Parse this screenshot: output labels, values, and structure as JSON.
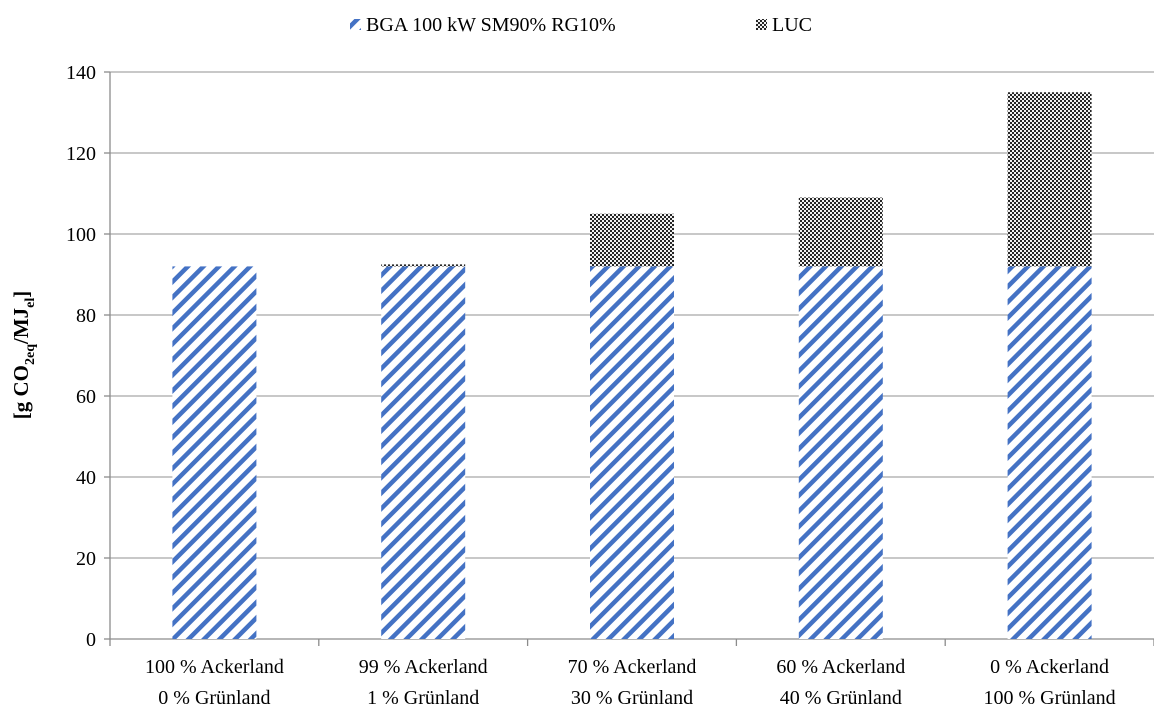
{
  "chart_data": {
    "type": "bar",
    "stacked": true,
    "title": "",
    "xlabel": "",
    "ylabel": {
      "prefix": "[g CO",
      "sub1": "2eq",
      "mid": "/MJ",
      "sub2": "el",
      "suffix": "]"
    },
    "ylim": [
      0,
      140
    ],
    "yticks": [
      0,
      20,
      40,
      60,
      80,
      100,
      120,
      140
    ],
    "grid": true,
    "legend_position": "top-center",
    "categories": [
      [
        "100 % Ackerland",
        "0 % Grünland"
      ],
      [
        "99 % Ackerland",
        "1 % Grünland"
      ],
      [
        "70 % Ackerland",
        "30 % Grünland"
      ],
      [
        "60 % Ackerland",
        "40 % Grünland"
      ],
      [
        "0 % Ackerland",
        "100 % Grünland"
      ]
    ],
    "series": [
      {
        "name": "BGA 100 kW SM90% RG10%",
        "values": [
          92,
          92,
          92,
          92,
          92
        ],
        "color": "#4472c4",
        "pattern": "diagonal-stripes"
      },
      {
        "name": "LUC",
        "values": [
          0,
          0.5,
          13,
          17,
          43
        ],
        "color": "#262626",
        "pattern": "checker"
      }
    ]
  }
}
